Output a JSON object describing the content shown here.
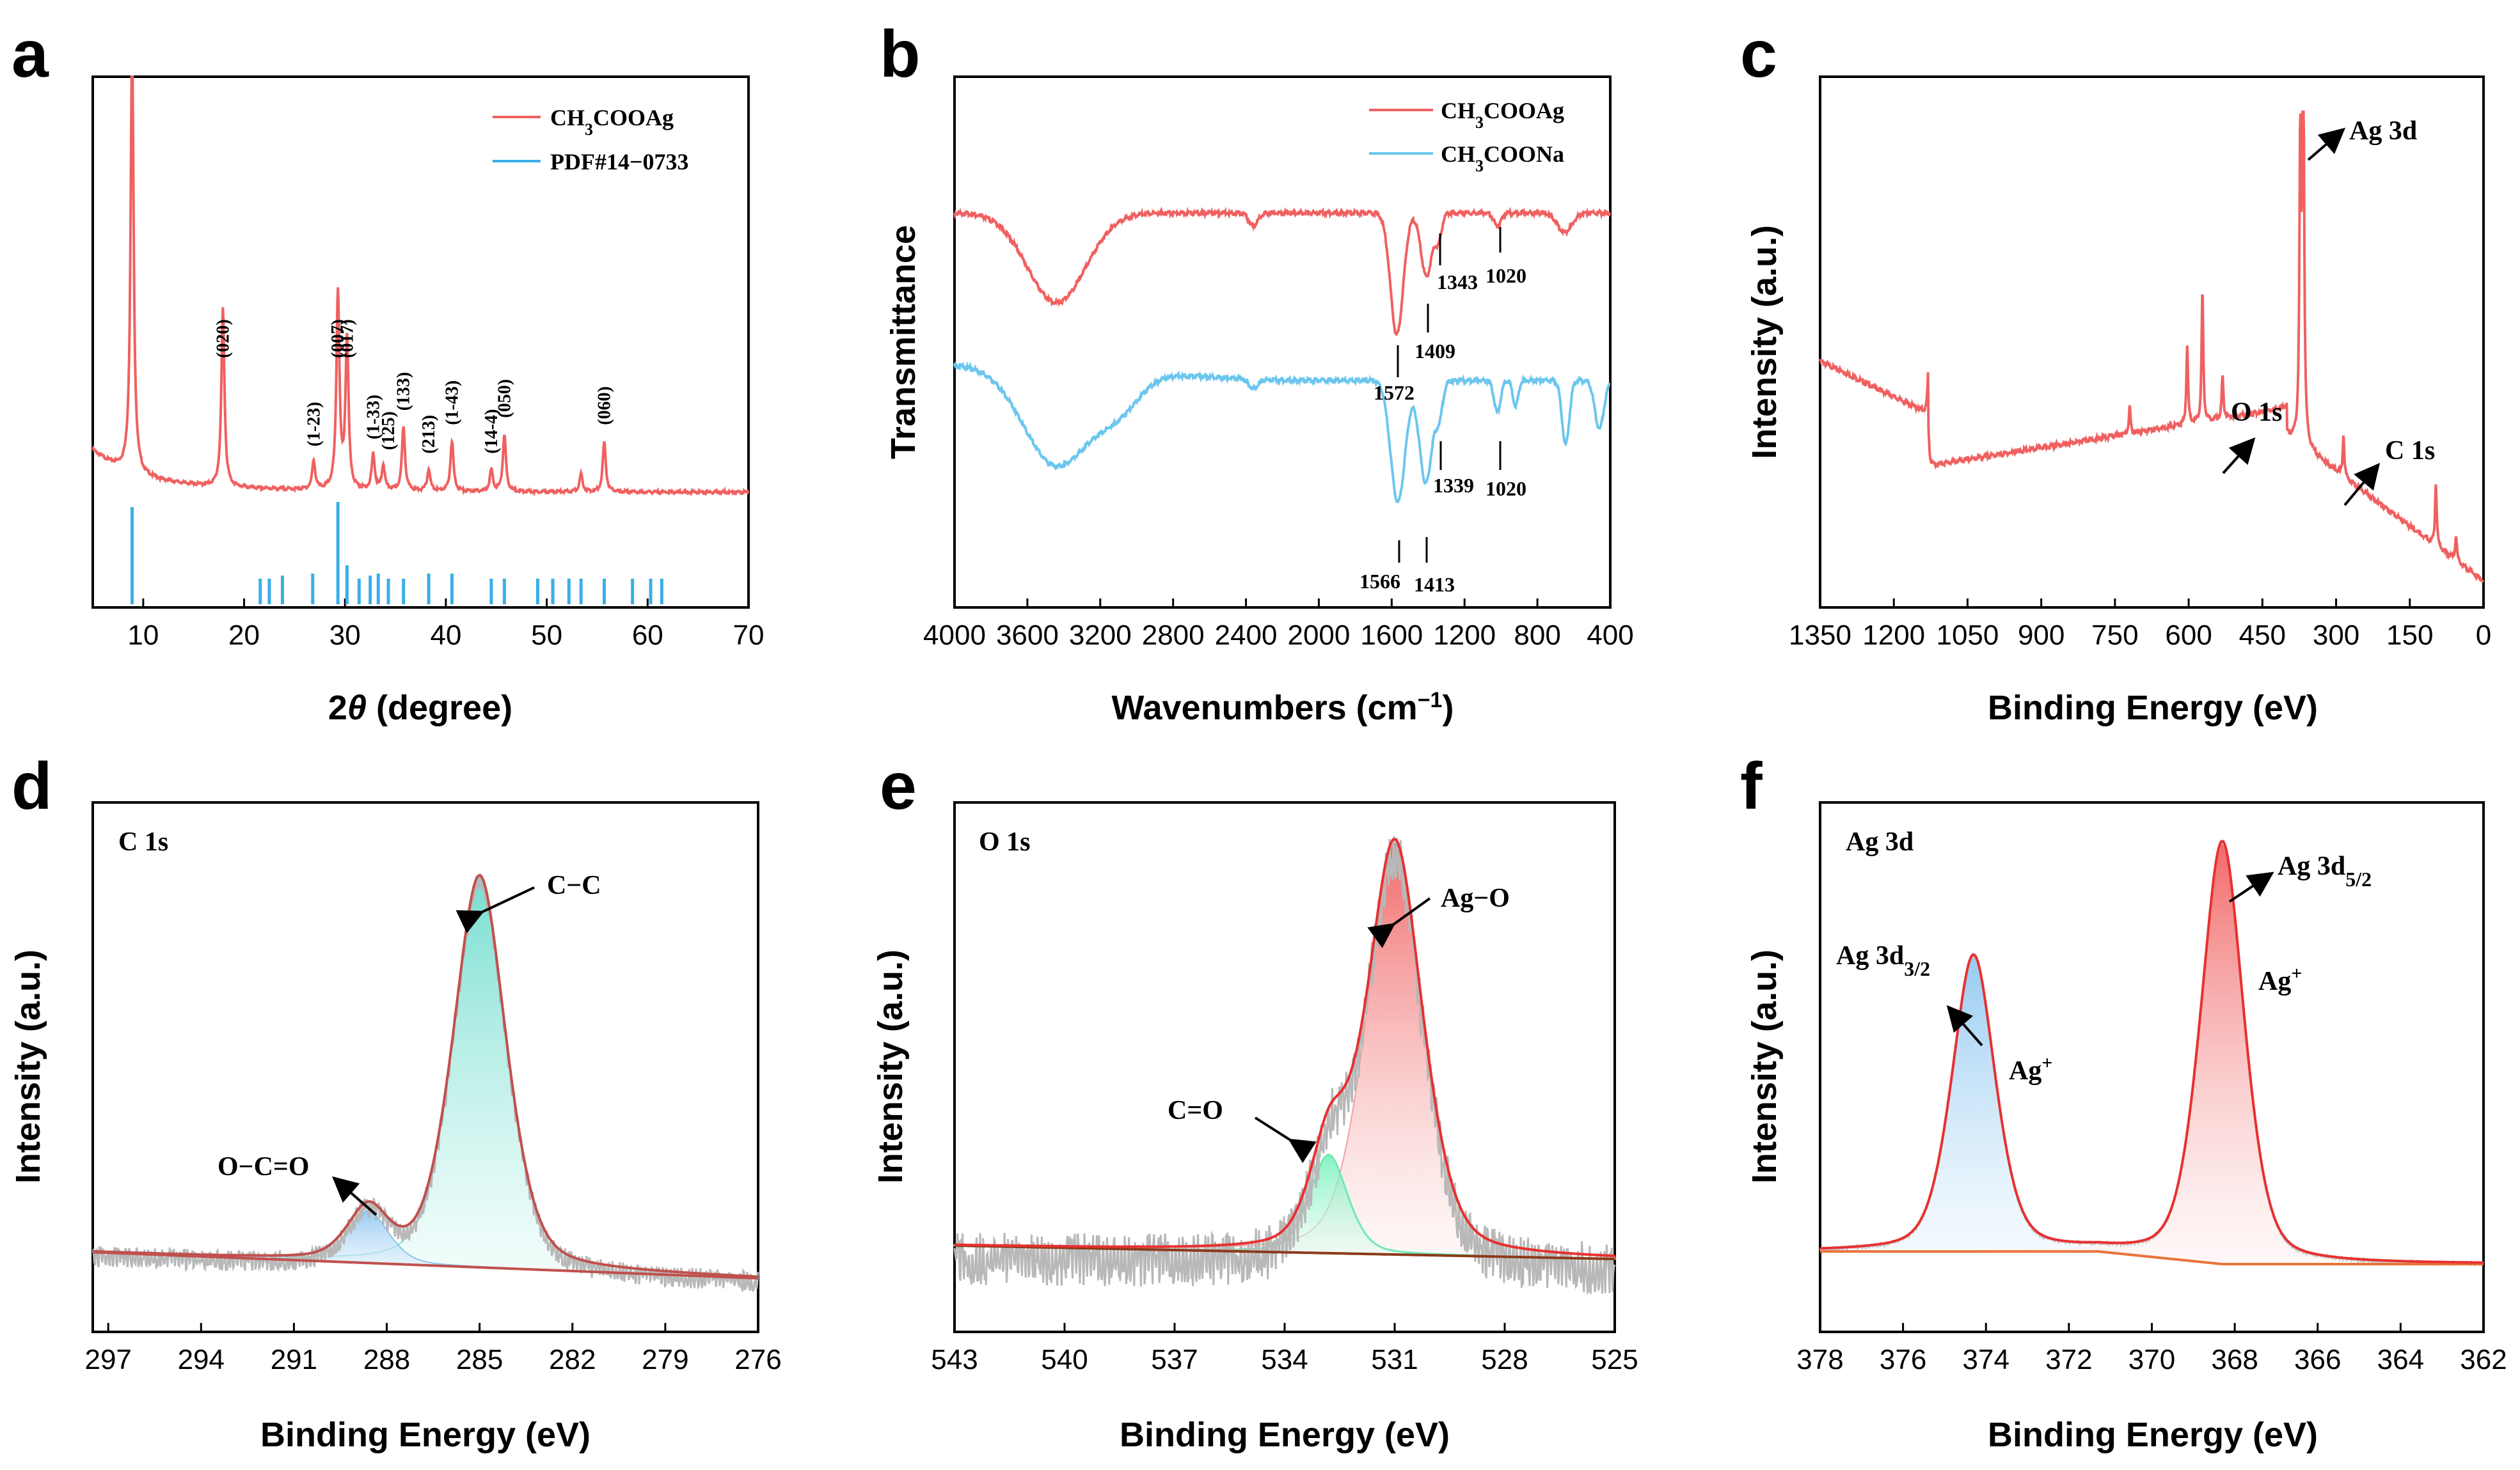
{
  "panels": [
    {
      "id": "a",
      "letter": "a"
    },
    {
      "id": "b",
      "letter": "b"
    },
    {
      "id": "c",
      "letter": "c"
    },
    {
      "id": "d",
      "letter": "d"
    },
    {
      "id": "e",
      "letter": "e"
    },
    {
      "id": "f",
      "letter": "f"
    }
  ],
  "chart_data": [
    {
      "panel": "a",
      "type": "line",
      "xlabel": "2θ (degree)",
      "ylabel": "",
      "xlim": [
        5,
        70
      ],
      "xticks": [
        10,
        20,
        30,
        40,
        50,
        60,
        70
      ],
      "colors": {
        "series": "#f06060",
        "reference": "#3aaee8"
      },
      "legend": [
        "CH3COOAg",
        "PDF#14-0733"
      ],
      "series": [
        {
          "name": "CH3COOAg",
          "baseline": 0.2,
          "peaks": [
            {
              "x": 8.9,
              "h": 1.2
            },
            {
              "x": 17.9,
              "h": 0.5
            },
            {
              "x": 26.9,
              "h": 0.08
            },
            {
              "x": 29.3,
              "h": 0.55
            },
            {
              "x": 30.2,
              "h": 0.42
            },
            {
              "x": 32.8,
              "h": 0.1
            },
            {
              "x": 33.8,
              "h": 0.07
            },
            {
              "x": 35.8,
              "h": 0.18
            },
            {
              "x": 38.3,
              "h": 0.06
            },
            {
              "x": 40.6,
              "h": 0.14
            },
            {
              "x": 44.5,
              "h": 0.06
            },
            {
              "x": 45.8,
              "h": 0.16
            },
            {
              "x": 53.4,
              "h": 0.05
            },
            {
              "x": 55.7,
              "h": 0.14
            }
          ]
        }
      ],
      "reference_lines": [
        {
          "x": 8.9,
          "h": 0.95
        },
        {
          "x": 21.6,
          "h": 0.25
        },
        {
          "x": 22.5,
          "h": 0.25
        },
        {
          "x": 23.8,
          "h": 0.28
        },
        {
          "x": 26.8,
          "h": 0.3
        },
        {
          "x": 29.3,
          "h": 1.0
        },
        {
          "x": 30.2,
          "h": 0.38
        },
        {
          "x": 31.4,
          "h": 0.25
        },
        {
          "x": 32.5,
          "h": 0.28
        },
        {
          "x": 33.3,
          "h": 0.3
        },
        {
          "x": 34.3,
          "h": 0.25
        },
        {
          "x": 35.8,
          "h": 0.25
        },
        {
          "x": 38.3,
          "h": 0.3
        },
        {
          "x": 40.6,
          "h": 0.3
        },
        {
          "x": 44.5,
          "h": 0.25
        },
        {
          "x": 45.8,
          "h": 0.25
        },
        {
          "x": 49.1,
          "h": 0.25
        },
        {
          "x": 50.6,
          "h": 0.25
        },
        {
          "x": 52.2,
          "h": 0.25
        },
        {
          "x": 53.4,
          "h": 0.25
        },
        {
          "x": 55.7,
          "h": 0.25
        },
        {
          "x": 58.5,
          "h": 0.25
        },
        {
          "x": 60.3,
          "h": 0.25
        },
        {
          "x": 61.4,
          "h": 0.25
        }
      ],
      "peak_labels": [
        {
          "x": 17.9,
          "label": "(020)"
        },
        {
          "x": 26.9,
          "label": "(1-23)"
        },
        {
          "x": 29.3,
          "label": "(007)"
        },
        {
          "x": 30.2,
          "label": "(017)"
        },
        {
          "x": 32.8,
          "label": "(1-33)"
        },
        {
          "x": 34.3,
          "label": "(125)"
        },
        {
          "x": 35.8,
          "label": "(133)"
        },
        {
          "x": 38.3,
          "label": "(213)"
        },
        {
          "x": 40.6,
          "label": "(1-43)"
        },
        {
          "x": 44.5,
          "label": "(14-4)"
        },
        {
          "x": 45.8,
          "label": "(050)"
        },
        {
          "x": 55.7,
          "label": "(060)"
        }
      ]
    },
    {
      "panel": "b",
      "type": "line",
      "xlabel": "Wavenumbers (cm⁻¹)",
      "ylabel": "Transmittance",
      "xlim": [
        4000,
        400
      ],
      "xticks": [
        4000,
        3600,
        3200,
        2800,
        2400,
        2000,
        1600,
        1200,
        800,
        400
      ],
      "legend": [
        "CH3COOAg",
        "CH3COONa"
      ],
      "series": [
        {
          "name": "CH3COOAg",
          "color": "#f06060",
          "baseline": 0.83,
          "dips": [
            {
              "x": 3440,
              "depth": 0.28,
              "w": 160
            },
            {
              "x": 2360,
              "depth": 0.04,
              "w": 25
            },
            {
              "x": 1572,
              "depth": 0.38,
              "w": 35
            },
            {
              "x": 1409,
              "depth": 0.2,
              "w": 30
            },
            {
              "x": 1343,
              "depth": 0.08,
              "w": 18
            },
            {
              "x": 1020,
              "depth": 0.04,
              "w": 20
            },
            {
              "x": 650,
              "depth": 0.06,
              "w": 40
            }
          ]
        },
        {
          "name": "CH3COONa",
          "color": "#6cc6ee",
          "baseline": 0.58,
          "dips": [
            {
              "x": 3440,
              "depth": 0.3,
              "w": 180
            },
            {
              "x": 3100,
              "depth": 0.1,
              "w": 120
            },
            {
              "x": 2360,
              "depth": 0.03,
              "w": 25
            },
            {
              "x": 1566,
              "depth": 0.38,
              "w": 40
            },
            {
              "x": 1413,
              "depth": 0.32,
              "w": 35
            },
            {
              "x": 1339,
              "depth": 0.1,
              "w": 20
            },
            {
              "x": 1020,
              "depth": 0.1,
              "w": 18
            },
            {
              "x": 920,
              "depth": 0.08,
              "w": 15
            },
            {
              "x": 645,
              "depth": 0.2,
              "w": 20
            },
            {
              "x": 460,
              "depth": 0.15,
              "w": 25
            }
          ]
        }
      ],
      "annotations": [
        "1343",
        "1020",
        "1572",
        "1409",
        "1339",
        "1020",
        "1566",
        "1413"
      ]
    },
    {
      "panel": "c",
      "type": "line",
      "xlabel": "Binding Energy (eV)",
      "ylabel": "Intensity (a.u.)",
      "xlim": [
        1350,
        0
      ],
      "xticks": [
        1350,
        1200,
        1050,
        900,
        750,
        600,
        450,
        300,
        150,
        0
      ],
      "color": "#f06060",
      "peaks": [
        {
          "x": 1130,
          "h": 0.08
        },
        {
          "x": 720,
          "h": 0.05
        },
        {
          "x": 603,
          "h": 0.15
        },
        {
          "x": 572,
          "h": 0.25
        },
        {
          "x": 531,
          "h": 0.08
        },
        {
          "x": 373,
          "h": 0.55
        },
        {
          "x": 367,
          "h": 0.9
        },
        {
          "x": 285,
          "h": 0.08
        },
        {
          "x": 97,
          "h": 0.12
        },
        {
          "x": 56,
          "h": 0.05
        }
      ],
      "annotations": [
        "Ag 3d",
        "O 1s",
        "C 1s"
      ]
    },
    {
      "panel": "d",
      "type": "line",
      "title": "C 1s",
      "xlabel": "Binding Energy (eV)",
      "ylabel": "Intensity (a.u.)",
      "xlim": [
        297.5,
        276
      ],
      "xticks": [
        297,
        294,
        291,
        288,
        285,
        282,
        279,
        276
      ],
      "components": [
        {
          "label": "C−C",
          "center": 285.0,
          "h": 0.9,
          "w": 0.9,
          "color": "#7fe0d6"
        },
        {
          "label": "O−C=O",
          "center": 288.6,
          "h": 0.12,
          "w": 0.7,
          "color": "#a9d3ee"
        }
      ]
    },
    {
      "panel": "e",
      "type": "line",
      "title": "O 1s",
      "xlabel": "Binding Energy (eV)",
      "ylabel": "Intensity (a.u.)",
      "xlim": [
        543,
        525
      ],
      "xticks": [
        543,
        540,
        537,
        534,
        531,
        528,
        525
      ],
      "components": [
        {
          "label": "Ag−O",
          "center": 531.0,
          "h": 0.92,
          "w": 0.8,
          "color": "#f6a3a3"
        },
        {
          "label": "C=O",
          "center": 532.8,
          "h": 0.22,
          "w": 0.55,
          "color": "#8ff0c6"
        }
      ]
    },
    {
      "panel": "f",
      "type": "line",
      "title": "Ag 3d",
      "xlabel": "Binding Energy (eV)",
      "ylabel": "Intensity (a.u.)",
      "xlim": [
        378,
        362
      ],
      "xticks": [
        378,
        376,
        374,
        372,
        370,
        368,
        366,
        364,
        362
      ],
      "components": [
        {
          "label": "Ag 3d3/2",
          "state": "Ag+",
          "center": 374.3,
          "h": 0.7,
          "w": 0.55,
          "color": "#a6d4f4"
        },
        {
          "label": "Ag 3d5/2",
          "state": "Ag+",
          "center": 368.3,
          "h": 1.0,
          "w": 0.55,
          "color": "#f6a3a3"
        }
      ]
    }
  ],
  "labels": {
    "a": {
      "xlabel_prefix": "2",
      "xlabel_theta": "θ",
      "xlabel_rest": " (degree)",
      "legend1_pre": "CH",
      "legend1_sub": "3",
      "legend1_post": "COOAg",
      "legend2": "PDF#14−0733",
      "hkl": [
        "(020)",
        "(1-23)",
        "(007)",
        "(017)",
        "(1-33)",
        "(125)",
        "(133)",
        "(213)",
        "(1-43)",
        "(14-4)",
        "(050)",
        "(060)"
      ]
    },
    "b": {
      "ylabel": "Transmittance",
      "xlabel_main": "Wavenumbers (cm",
      "xlabel_sup": "−1",
      "xlabel_close": ")",
      "legend1_pre": "CH",
      "legend1_sub": "3",
      "legend1_post": "COOAg",
      "legend2_pre": "CH",
      "legend2_sub": "3",
      "legend2_post": "COONa",
      "ann_1343": "1343",
      "ann_1020a": "1020",
      "ann_1572": "1572",
      "ann_1409": "1409",
      "ann_1339": "1339",
      "ann_1020b": "1020",
      "ann_1566": "1566",
      "ann_1413": "1413"
    },
    "c": {
      "ylabel": "Intensity (a.u.)",
      "xlabel": "Binding Energy (eV)",
      "ag3d": "Ag 3d",
      "o1s": "O 1s",
      "c1s": "C 1s"
    },
    "d": {
      "ylabel": "Intensity (a.u.)",
      "xlabel": "Binding Energy (eV)",
      "title": "C 1s",
      "cc": "C−C",
      "occo": "O−C=O"
    },
    "e": {
      "ylabel": "Intensity (a.u.)",
      "xlabel": "Binding Energy (eV)",
      "title": "O 1s",
      "ago": "Ag−O",
      "co": "C=O"
    },
    "f": {
      "ylabel": "Intensity (a.u.)",
      "xlabel": "Binding Energy (eV)",
      "title": "Ag 3d",
      "ag32_pre": "Ag 3d",
      "ag32_sub": "3/2",
      "ag52_pre": "Ag 3d",
      "ag52_sub": "5/2",
      "agplus_base": "Ag",
      "agplus_sup": "+"
    }
  }
}
